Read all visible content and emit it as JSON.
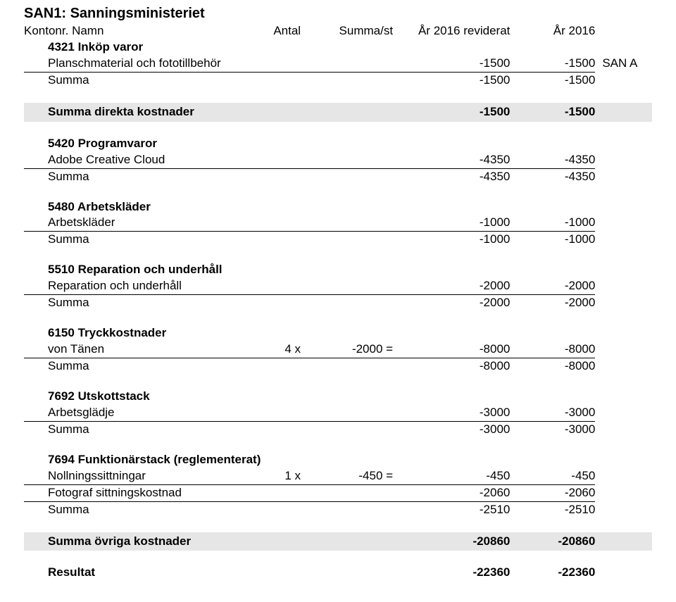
{
  "title": "SAN1: Sanningsministeriet",
  "header": {
    "kontonr": "Kontonr.",
    "namn": "Namn",
    "antal": "Antal",
    "summast": "Summa/st",
    "reviderat": "År 2016 reviderat",
    "ar": "År 2016"
  },
  "sections": [
    {
      "code": "4321",
      "name": "Inköp varor",
      "rows": [
        {
          "label": "Planschmaterial och fototillbehör",
          "antal": "",
          "summast": "",
          "rev": "-1500",
          "yr": "-1500",
          "note": "SAN A"
        }
      ],
      "sum": {
        "label": "Summa",
        "rev": "-1500",
        "yr": "-1500"
      }
    }
  ],
  "band_direkta": {
    "label": "Summa direkta kostnader",
    "rev": "-1500",
    "yr": "-1500"
  },
  "sections2": [
    {
      "code": "5420",
      "name": "Programvaror",
      "rows": [
        {
          "label": "Adobe Creative Cloud",
          "antal": "",
          "summast": "",
          "rev": "-4350",
          "yr": "-4350"
        }
      ],
      "sum": {
        "label": "Summa",
        "rev": "-4350",
        "yr": "-4350"
      }
    },
    {
      "code": "5480",
      "name": "Arbetskläder",
      "rows": [
        {
          "label": "Arbetskläder",
          "antal": "",
          "summast": "",
          "rev": "-1000",
          "yr": "-1000"
        }
      ],
      "sum": {
        "label": "Summa",
        "rev": "-1000",
        "yr": "-1000"
      }
    },
    {
      "code": "5510",
      "name": "Reparation och underhåll",
      "rows": [
        {
          "label": "Reparation och underhåll",
          "antal": "",
          "summast": "",
          "rev": "-2000",
          "yr": "-2000"
        }
      ],
      "sum": {
        "label": "Summa",
        "rev": "-2000",
        "yr": "-2000"
      }
    },
    {
      "code": "6150",
      "name": "Tryckkostnader",
      "rows": [
        {
          "label": "von Tänen",
          "antal": "4 x",
          "summast": "-2000 =",
          "rev": "-8000",
          "yr": "-8000"
        }
      ],
      "sum": {
        "label": "Summa",
        "rev": "-8000",
        "yr": "-8000"
      }
    },
    {
      "code": "7692",
      "name": "Utskottstack",
      "rows": [
        {
          "label": "Arbetsglädje",
          "antal": "",
          "summast": "",
          "rev": "-3000",
          "yr": "-3000"
        }
      ],
      "sum": {
        "label": "Summa",
        "rev": "-3000",
        "yr": "-3000"
      }
    },
    {
      "code": "7694",
      "name": "Funktionärstack (reglementerat)",
      "rows": [
        {
          "label": "Nollningssittningar",
          "antal": "1 x",
          "summast": "-450 =",
          "rev": "-450",
          "yr": "-450"
        },
        {
          "label": "Fotograf sittningskostnad",
          "antal": "",
          "summast": "",
          "rev": "-2060",
          "yr": "-2060"
        }
      ],
      "sum": {
        "label": "Summa",
        "rev": "-2510",
        "yr": "-2510"
      }
    }
  ],
  "band_ovriga": {
    "label": "Summa övriga kostnader",
    "rev": "-20860",
    "yr": "-20860"
  },
  "resultat": {
    "label": "Resultat",
    "rev": "-22360",
    "yr": "-22360"
  }
}
